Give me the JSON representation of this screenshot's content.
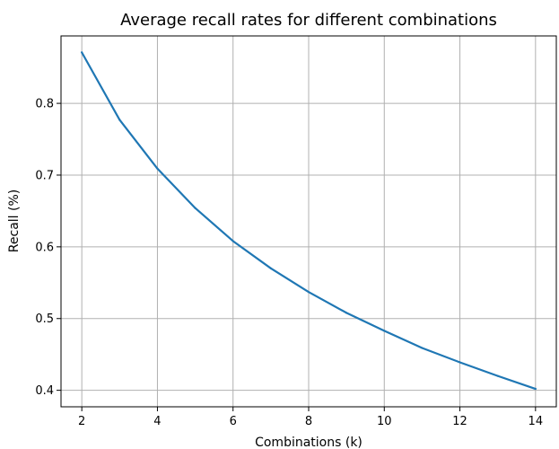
{
  "chart_data": {
    "type": "line",
    "title": "Average recall rates for different combinations",
    "xlabel": "Combinations (k)",
    "ylabel": "Recall (%)",
    "xlim": [
      1.45,
      14.55
    ],
    "ylim": [
      0.377,
      0.894
    ],
    "x_ticks": [
      2,
      4,
      6,
      8,
      10,
      12,
      14
    ],
    "y_ticks": [
      0.4,
      0.5,
      0.6,
      0.7,
      0.8
    ],
    "y_tick_labels": [
      "0.4",
      "0.5",
      "0.6",
      "0.7",
      "0.8"
    ],
    "grid": true,
    "line_color": "#1f77b4",
    "grid_color": "#b0b0b0",
    "series": [
      {
        "x": [
          2,
          3,
          4,
          5,
          6,
          7,
          8,
          9,
          10,
          11,
          12,
          13,
          14
        ],
        "values": [
          0.871,
          0.777,
          0.709,
          0.654,
          0.608,
          0.57,
          0.537,
          0.508,
          0.483,
          0.459,
          0.439,
          0.42,
          0.402
        ]
      }
    ]
  }
}
